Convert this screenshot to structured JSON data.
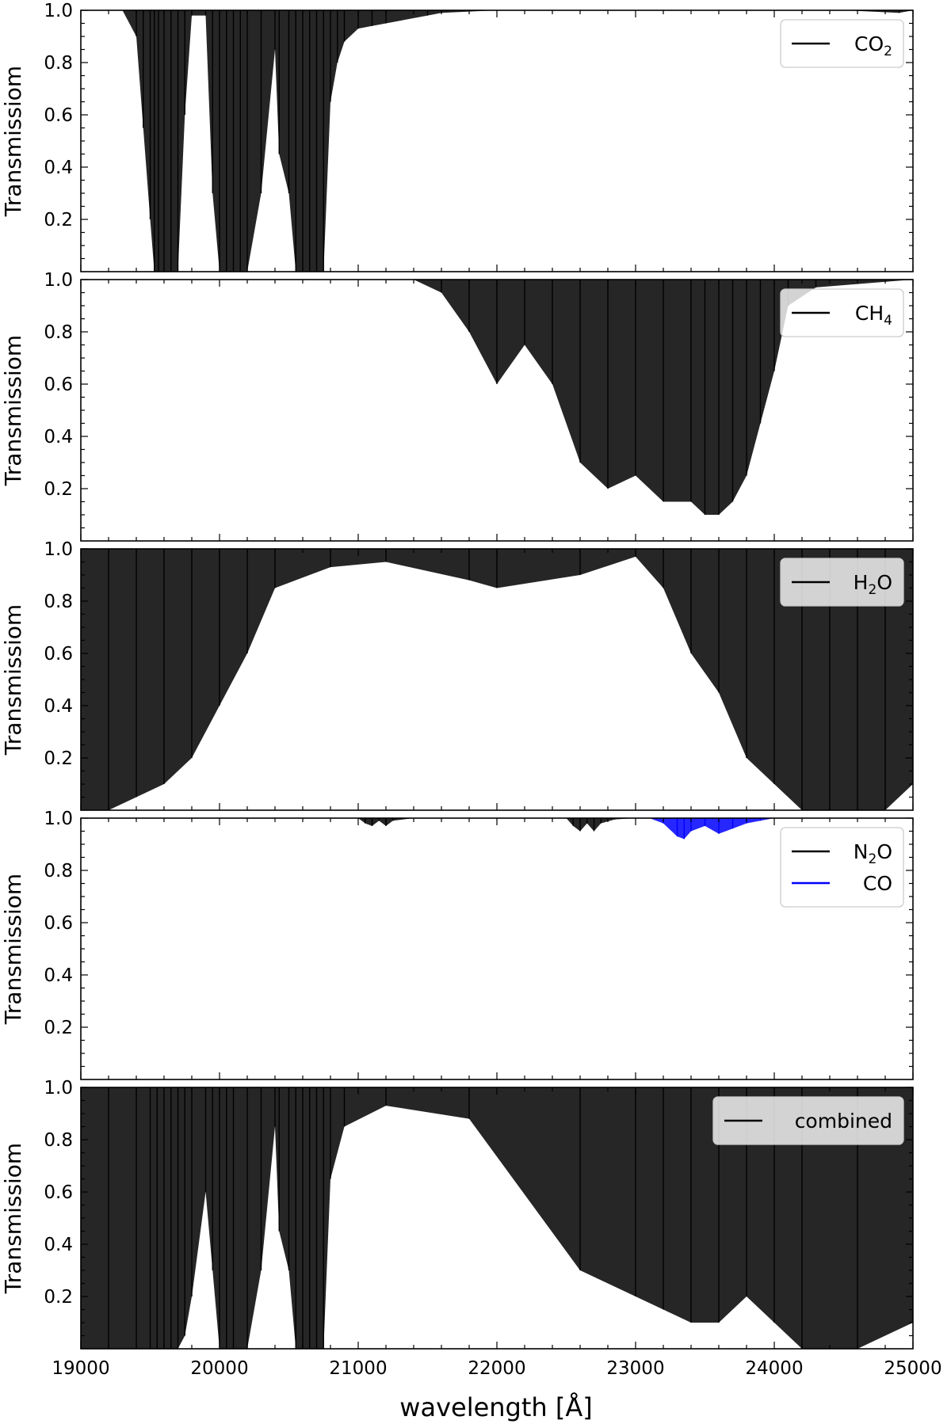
{
  "figure": {
    "xlabel": "wavelength [Å]",
    "ylabel": "Transmissiom",
    "xticks": [
      "19000",
      "20000",
      "21000",
      "22000",
      "23000",
      "24000",
      "25000"
    ],
    "yticks": [
      "0.2",
      "0.4",
      "0.6",
      "0.8",
      "1.0"
    ]
  },
  "chart_data": [
    {
      "type": "line",
      "panel": 1,
      "xlabel": "",
      "ylabel": "Transmissiom",
      "xlim": [
        19000,
        25000
      ],
      "ylim": [
        0.0,
        1.0
      ],
      "series": [
        {
          "name": "CO",
          "name_subscript": "2",
          "color": "#000000",
          "x": [
            19000,
            19300,
            19400,
            19450,
            19500,
            19530,
            19560,
            19600,
            19650,
            19700,
            19750,
            19800,
            19900,
            19950,
            20000,
            20050,
            20100,
            20150,
            20200,
            20300,
            20400,
            20430,
            20500,
            20550,
            20600,
            20650,
            20700,
            20750,
            20800,
            20850,
            20900,
            21000,
            21100,
            21200,
            21500,
            21600,
            22000,
            24500,
            24900,
            25000
          ],
          "y_min": [
            1.0,
            1.0,
            0.9,
            0.55,
            0.2,
            0.0,
            0.0,
            0.0,
            0.0,
            0.0,
            0.6,
            0.98,
            0.98,
            0.3,
            0.0,
            0.0,
            0.0,
            0.0,
            0.0,
            0.3,
            0.85,
            0.45,
            0.3,
            0.0,
            0.0,
            0.0,
            0.0,
            0.0,
            0.65,
            0.8,
            0.88,
            0.93,
            0.94,
            0.95,
            0.98,
            0.99,
            1.0,
            1.0,
            0.99,
            1.0
          ]
        }
      ],
      "legend": "top-right"
    },
    {
      "type": "line",
      "panel": 2,
      "xlabel": "",
      "ylabel": "Transmissiom",
      "xlim": [
        19000,
        25000
      ],
      "ylim": [
        0.0,
        1.0
      ],
      "series": [
        {
          "name": "CH",
          "name_subscript": "4",
          "color": "#000000",
          "x": [
            19000,
            21400,
            21600,
            21800,
            22000,
            22200,
            22400,
            22600,
            22800,
            23000,
            23200,
            23400,
            23500,
            23600,
            23700,
            23800,
            23900,
            24000,
            24100,
            24300,
            25000
          ],
          "y_min": [
            1.0,
            1.0,
            0.95,
            0.8,
            0.6,
            0.75,
            0.6,
            0.3,
            0.2,
            0.25,
            0.15,
            0.15,
            0.1,
            0.1,
            0.15,
            0.25,
            0.45,
            0.65,
            0.9,
            0.97,
            1.0
          ]
        }
      ],
      "legend": "top-right"
    },
    {
      "type": "line",
      "panel": 3,
      "xlabel": "",
      "ylabel": "Transmissiom",
      "xlim": [
        19000,
        25000
      ],
      "ylim": [
        0.0,
        1.0
      ],
      "series": [
        {
          "name": "H",
          "name_subscript": "2",
          "name_suffix": "O",
          "color": "#000000",
          "x": [
            19000,
            19200,
            19400,
            19600,
            19800,
            20000,
            20200,
            20400,
            20800,
            21200,
            21800,
            22000,
            22600,
            23000,
            23200,
            23400,
            23600,
            23800,
            24000,
            24200,
            24400,
            24600,
            24800,
            25000
          ],
          "y_min": [
            0.0,
            0.0,
            0.05,
            0.1,
            0.2,
            0.4,
            0.6,
            0.85,
            0.93,
            0.95,
            0.88,
            0.85,
            0.9,
            0.97,
            0.85,
            0.6,
            0.45,
            0.2,
            0.1,
            0.0,
            0.0,
            0.0,
            0.0,
            0.1
          ]
        }
      ],
      "legend": "top-right"
    },
    {
      "type": "line",
      "panel": 4,
      "xlabel": "",
      "ylabel": "Transmissiom",
      "xlim": [
        19000,
        25000
      ],
      "ylim": [
        0.0,
        1.0
      ],
      "series": [
        {
          "name": "N",
          "name_subscript": "2",
          "name_suffix": "O",
          "color": "#000000",
          "x": [
            19000,
            21000,
            21050,
            21100,
            21150,
            21200,
            21250,
            21400,
            22500,
            22550,
            22600,
            22650,
            22700,
            22750,
            22850,
            23000,
            25000
          ],
          "y_min": [
            1.0,
            1.0,
            0.98,
            0.97,
            0.99,
            0.97,
            0.99,
            1.0,
            1.0,
            0.97,
            0.95,
            0.98,
            0.95,
            0.98,
            0.995,
            1.0,
            1.0
          ]
        },
        {
          "name": "CO",
          "color": "#0000ff",
          "x": [
            19000,
            23100,
            23200,
            23300,
            23350,
            23400,
            23500,
            23600,
            23700,
            23800,
            23900,
            24000,
            25000
          ],
          "y_min": [
            1.0,
            1.0,
            0.98,
            0.93,
            0.92,
            0.95,
            0.97,
            0.94,
            0.96,
            0.98,
            0.99,
            1.0,
            1.0
          ]
        }
      ],
      "legend": "top-right"
    },
    {
      "type": "line",
      "panel": 5,
      "xlabel": "wavelength [Å]",
      "ylabel": "Transmissiom",
      "xlim": [
        19000,
        25000
      ],
      "ylim": [
        0.0,
        1.0
      ],
      "series": [
        {
          "name": "combined",
          "color": "#000000",
          "x": [
            19000,
            19200,
            19400,
            19500,
            19550,
            19600,
            19650,
            19700,
            19750,
            19800,
            19900,
            19950,
            20000,
            20050,
            20100,
            20200,
            20300,
            20400,
            20430,
            20500,
            20550,
            20600,
            20650,
            20700,
            20750,
            20800,
            20900,
            21200,
            21800,
            22600,
            23000,
            23200,
            23400,
            23600,
            23800,
            24000,
            24200,
            24600,
            25000
          ],
          "y_min": [
            0.0,
            0.0,
            0.0,
            0.0,
            0.0,
            0.0,
            0.0,
            0.0,
            0.05,
            0.2,
            0.6,
            0.3,
            0.0,
            0.0,
            0.0,
            0.0,
            0.3,
            0.85,
            0.45,
            0.3,
            0.0,
            0.0,
            0.0,
            0.0,
            0.0,
            0.65,
            0.85,
            0.93,
            0.88,
            0.3,
            0.2,
            0.15,
            0.1,
            0.1,
            0.2,
            0.1,
            0.0,
            0.0,
            0.1
          ]
        }
      ],
      "legend": "top-right"
    }
  ]
}
